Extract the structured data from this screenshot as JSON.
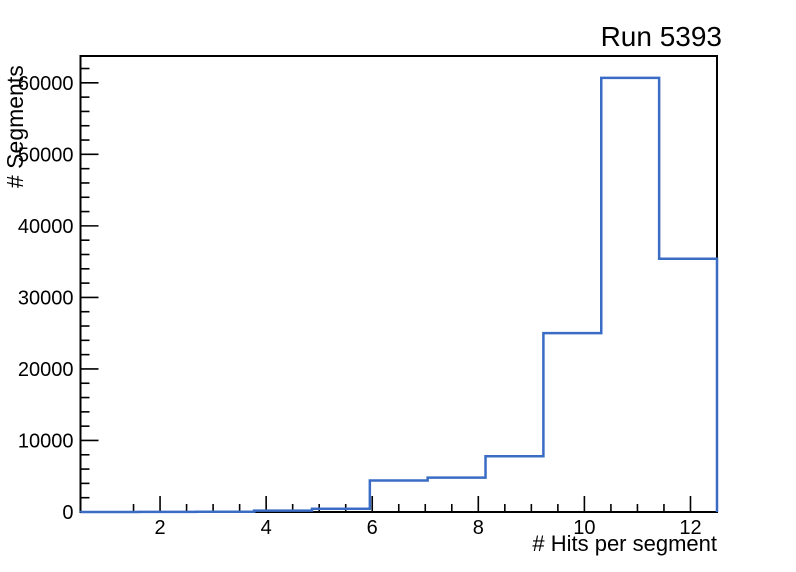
{
  "chart_data": {
    "type": "bar",
    "subtype": "step-histogram",
    "title": "Run 5393",
    "xlabel": "# Hits per segment",
    "ylabel": "# Segments",
    "xlim": [
      0.5,
      12.5
    ],
    "ylim": [
      0,
      63750
    ],
    "grid": false,
    "legend": "none",
    "bin_edges": [
      0.5,
      1.591,
      2.682,
      3.773,
      4.864,
      5.955,
      7.045,
      8.136,
      9.227,
      10.318,
      11.409,
      12.5
    ],
    "values": [
      5,
      15,
      40,
      200,
      450,
      4400,
      4800,
      7800,
      25000,
      60700,
      35400
    ],
    "x_major_ticks": [
      2,
      4,
      6,
      8,
      10,
      12
    ],
    "x_major_tick_labels": [
      "2",
      "4",
      "6",
      "8",
      "10",
      "12"
    ],
    "x_minor_tick_step": 0.5,
    "y_major_ticks": [
      0,
      10000,
      20000,
      30000,
      40000,
      50000,
      60000
    ],
    "y_major_tick_labels": [
      "0",
      "10000",
      "20000",
      "30000",
      "40000",
      "50000",
      "60000"
    ],
    "y_minor_tick_step": 2000,
    "colors": {
      "line": "#3b6cc5",
      "axis": "#000000",
      "text": "#000000",
      "background": "#ffffff"
    }
  }
}
